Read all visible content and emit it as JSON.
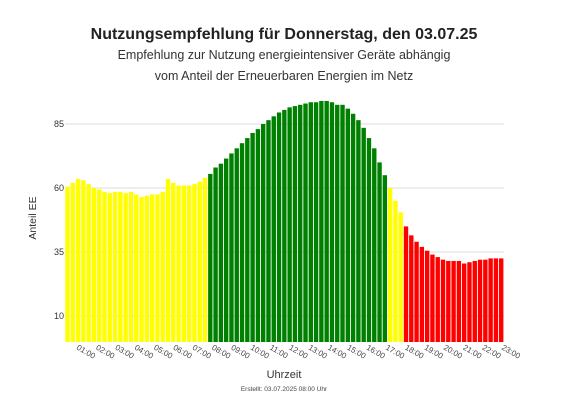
{
  "chart_data": {
    "type": "bar",
    "title": "Nutzungsempfehlung für Donnerstag, den 03.07.25",
    "subtitle_lines": [
      "Empfehlung zur Nutzung energieintensiver Geräte abhängig",
      "vom Anteil der Erneuerbaren Energien im Netz"
    ],
    "xlabel": "Uhrzeit",
    "ylabel": "Anteil EE",
    "yticks": [
      10,
      35,
      60,
      85
    ],
    "ylim": [
      0,
      100
    ],
    "grid": true,
    "footer": "Erstellt: 03.07.2025 08:00 Uhr",
    "hour_labels": [
      "01:00",
      "02:00",
      "03:00",
      "04:00",
      "05:00",
      "06:00",
      "07:00",
      "08:00",
      "09:00",
      "10:00",
      "11:00",
      "12:00",
      "13:00",
      "14:00",
      "15:00",
      "16:00",
      "17:00",
      "18:00",
      "19:00",
      "20:00",
      "21:00",
      "22:00",
      "23:00"
    ],
    "colors": {
      "yellow": "#ffff00",
      "green": "#008000",
      "red": "#ff0000"
    },
    "values": [
      60.5,
      62.0,
      63.5,
      63.0,
      61.5,
      60.0,
      59.5,
      58.5,
      58.0,
      58.5,
      58.5,
      58.0,
      58.5,
      57.5,
      56.5,
      57.0,
      57.5,
      57.5,
      58.5,
      63.5,
      62.0,
      61.0,
      61.0,
      61.0,
      61.5,
      62.5,
      64.0,
      65.5,
      68.0,
      69.5,
      71.5,
      73.5,
      75.5,
      77.5,
      79.5,
      81.5,
      83.0,
      85.0,
      86.5,
      88.0,
      89.5,
      90.5,
      91.5,
      92.0,
      92.5,
      93.0,
      93.5,
      93.5,
      94.0,
      94.0,
      93.5,
      92.5,
      92.5,
      91.0,
      89.0,
      86.5,
      83.5,
      79.5,
      75.5,
      70.0,
      65.0,
      60.0,
      55.0,
      50.5,
      45.0,
      41.5,
      39.0,
      37.0,
      35.5,
      34.0,
      33.0,
      32.0,
      31.5,
      31.5,
      31.5,
      30.5,
      31.0,
      31.5,
      32.0,
      32.0,
      32.5,
      32.5,
      32.5
    ],
    "classes": [
      "yellow",
      "yellow",
      "yellow",
      "yellow",
      "yellow",
      "yellow",
      "yellow",
      "yellow",
      "yellow",
      "yellow",
      "yellow",
      "yellow",
      "yellow",
      "yellow",
      "yellow",
      "yellow",
      "yellow",
      "yellow",
      "yellow",
      "yellow",
      "yellow",
      "yellow",
      "yellow",
      "yellow",
      "yellow",
      "yellow",
      "yellow",
      "green",
      "green",
      "green",
      "green",
      "green",
      "green",
      "green",
      "green",
      "green",
      "green",
      "green",
      "green",
      "green",
      "green",
      "green",
      "green",
      "green",
      "green",
      "green",
      "green",
      "green",
      "green",
      "green",
      "green",
      "green",
      "green",
      "green",
      "green",
      "green",
      "green",
      "green",
      "green",
      "green",
      "green",
      "yellow",
      "yellow",
      "yellow",
      "red",
      "red",
      "red",
      "red",
      "red",
      "red",
      "red",
      "red",
      "red",
      "red",
      "red",
      "red",
      "red",
      "red",
      "red",
      "red",
      "red",
      "red",
      "red"
    ]
  }
}
